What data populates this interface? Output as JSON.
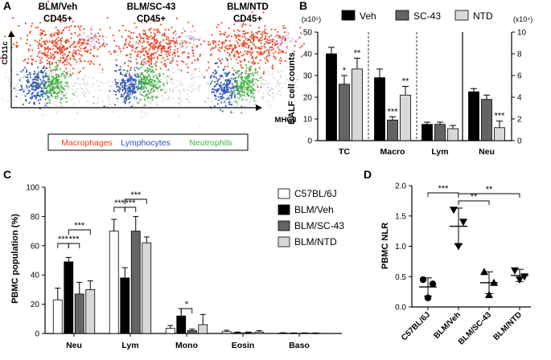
{
  "chart_data": [
    {
      "panel": "A",
      "type": "scatter",
      "title": "",
      "plot_titles": [
        {
          "line1": "BLM/Veh",
          "line2": "CD45+"
        },
        {
          "line1": "BLM/SC-43",
          "line2": "CD45+"
        },
        {
          "line1": "BLM/NTD",
          "line2": "CD45+"
        }
      ],
      "xlabel": "MHCII",
      "ylabel": "CD11c",
      "legend": [
        "Macrophages",
        "Lymphocytes",
        "Neutrophils"
      ],
      "colors": {
        "Macrophages": "#e8401c",
        "Lymphocytes": "#2a50b8",
        "Neutrophils": "#3cb43c",
        "other": "#b8b8b8",
        "purple": "#b89ad8"
      }
    },
    {
      "panel": "B",
      "type": "bar",
      "title": "",
      "categories": [
        "TC",
        "Macro",
        "Lym",
        "Neu"
      ],
      "ylabel": "BALF cell counts",
      "ylim": [
        0,
        50
      ],
      "yticks": [
        0,
        10,
        20,
        30,
        40,
        50
      ],
      "y2lim": [
        0,
        10
      ],
      "y2ticks": [
        0,
        2,
        4,
        6,
        8,
        10
      ],
      "left_axis_unit": "(x10⁵)",
      "right_axis_unit": "(x10⁴)",
      "legend_position": "top",
      "series": [
        {
          "name": "Veh",
          "color": "#000000",
          "values": [
            40,
            29,
            7.5,
            22.5
          ],
          "errors": [
            3,
            4,
            1,
            1.5
          ]
        },
        {
          "name": "SC-43",
          "color": "#646464",
          "values": [
            26,
            9.5,
            7.5,
            19
          ],
          "errors": [
            4,
            1.5,
            1,
            2
          ]
        },
        {
          "name": "NTD",
          "color": "#d8d8d8",
          "values": [
            33,
            21,
            5.5,
            6
          ],
          "errors": [
            5,
            4,
            1.5,
            3
          ]
        }
      ],
      "annotations": [
        {
          "category": "TC",
          "series": "SC-43",
          "text": "*"
        },
        {
          "category": "TC",
          "series": "NTD",
          "text": "**"
        },
        {
          "category": "Macro",
          "series": "SC-43",
          "text": "***"
        },
        {
          "category": "Macro",
          "series": "NTD",
          "text": "**"
        },
        {
          "category": "Neu",
          "series": "NTD",
          "text": "***"
        }
      ]
    },
    {
      "panel": "C",
      "type": "bar",
      "title": "",
      "categories": [
        "Neu",
        "Lym",
        "Mono",
        "Eosin",
        "Baso"
      ],
      "ylabel": "PBMC population (%)",
      "ylim": [
        0,
        100
      ],
      "yticks": [
        0,
        20,
        40,
        60,
        80,
        100
      ],
      "legend_position": "top-right",
      "series": [
        {
          "name": "C57BL/6J",
          "color": "#ffffff",
          "values": [
            23,
            70,
            3.5,
            1.2,
            0.3
          ],
          "errors": [
            8,
            8,
            2,
            1,
            0.2
          ]
        },
        {
          "name": "BLM/Veh",
          "color": "#000000",
          "values": [
            49,
            38,
            12,
            0.5,
            0.2
          ],
          "errors": [
            3,
            7,
            5,
            0.5,
            0.2
          ]
        },
        {
          "name": "BLM/SC-43",
          "color": "#646464",
          "values": [
            27,
            70,
            2,
            0.5,
            0.2
          ],
          "errors": [
            8,
            10,
            1,
            0.5,
            0.2
          ]
        },
        {
          "name": "BLM/NTD",
          "color": "#d8d8d8",
          "values": [
            30,
            62,
            6,
            1,
            0.2
          ],
          "errors": [
            6,
            4,
            7,
            1,
            0.2
          ]
        }
      ],
      "significance": [
        {
          "category": "Neu",
          "text": "***"
        },
        {
          "category": "Neu",
          "text": "***"
        },
        {
          "category": "Neu",
          "text": "***"
        },
        {
          "category": "Lym",
          "text": "***"
        },
        {
          "category": "Lym",
          "text": "***"
        },
        {
          "category": "Lym",
          "text": "***"
        },
        {
          "category": "Mono",
          "text": "*"
        }
      ]
    },
    {
      "panel": "D",
      "type": "scatter",
      "title": "",
      "categories": [
        "C57BL/6J",
        "BLM/Veh",
        "BLM/SC-43",
        "BLM/NTD"
      ],
      "ylabel": "PBMC NLR",
      "ylim": [
        0,
        2
      ],
      "yticks": [
        "0.0",
        "0.5",
        "1.0",
        "1.5",
        "2.0"
      ],
      "groups": [
        {
          "name": "C57BL/6J",
          "marker": "circle",
          "points": [
            0.45,
            0.38,
            0.15
          ],
          "mean": 0.33,
          "sd": 0.15
        },
        {
          "name": "BLM/Veh",
          "marker": "triangle-down",
          "points": [
            1.6,
            1.4,
            1.0
          ],
          "mean": 1.33,
          "sd": 0.3
        },
        {
          "name": "BLM/SC-43",
          "marker": "triangle-up",
          "points": [
            0.58,
            0.4,
            0.2
          ],
          "mean": 0.4,
          "sd": 0.18
        },
        {
          "name": "BLM/NTD",
          "marker": "triangle-down",
          "points": [
            0.6,
            0.5,
            0.45
          ],
          "mean": 0.52,
          "sd": 0.1
        }
      ],
      "significance": [
        {
          "from": "C57BL/6J",
          "to": "BLM/Veh",
          "text": "***"
        },
        {
          "from": "BLM/Veh",
          "to": "BLM/SC-43",
          "text": "**"
        },
        {
          "from": "BLM/Veh",
          "to": "BLM/NTD",
          "text": "**"
        }
      ]
    }
  ],
  "panel_labels": [
    "A",
    "B",
    "C",
    "D"
  ]
}
